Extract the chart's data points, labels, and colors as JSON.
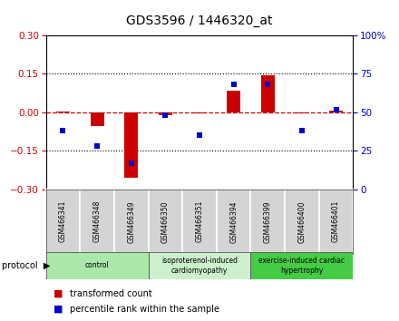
{
  "title": "GDS3596 / 1446320_at",
  "samples": [
    "GSM466341",
    "GSM466348",
    "GSM466349",
    "GSM466350",
    "GSM466351",
    "GSM466394",
    "GSM466399",
    "GSM466400",
    "GSM466401"
  ],
  "transformed_count": [
    0.003,
    -0.055,
    -0.255,
    -0.012,
    -0.003,
    0.085,
    0.145,
    -0.003,
    0.008
  ],
  "percentile_rank": [
    38,
    28,
    17,
    48,
    35,
    68,
    68,
    38,
    52
  ],
  "ylim_left": [
    -0.3,
    0.3
  ],
  "ylim_right": [
    0,
    100
  ],
  "yticks_left": [
    -0.3,
    -0.15,
    0,
    0.15,
    0.3
  ],
  "yticks_right": [
    0,
    25,
    50,
    75,
    100
  ],
  "hline_y": [
    0.15,
    -0.15
  ],
  "red_color": "#cc0000",
  "blue_color": "#0000cc",
  "protocol_groups": [
    {
      "label": "control",
      "start": 0,
      "end": 2,
      "color": "#aae8aa"
    },
    {
      "label": "isoproterenol-induced\ncardiomyopathy",
      "start": 3,
      "end": 5,
      "color": "#ccf0cc"
    },
    {
      "label": "exercise-induced cardiac\nhypertrophy",
      "start": 6,
      "end": 8,
      "color": "#44cc44"
    }
  ],
  "bar_width": 0.4,
  "marker_size": 5,
  "bg_color": "#ffffff",
  "gray_cell": "#d4d4d4"
}
